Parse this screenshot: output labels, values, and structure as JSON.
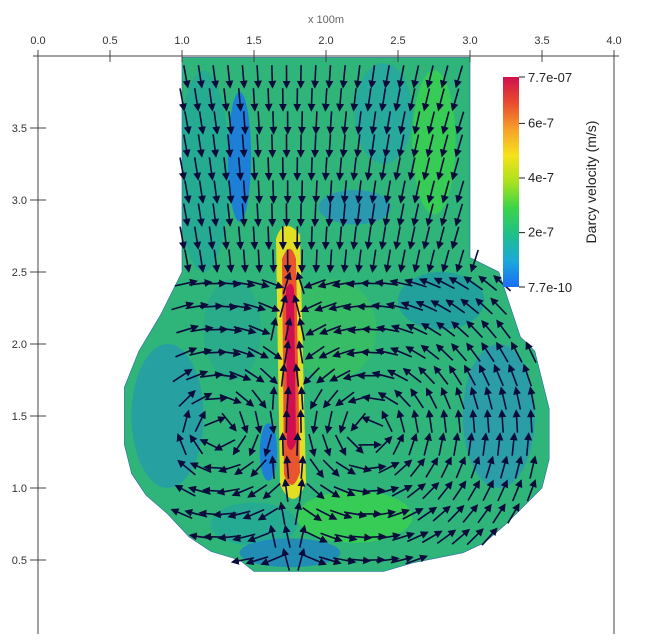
{
  "chart_data": {
    "type": "heatmap",
    "x_axis": {
      "unit_label": "x 100m",
      "range": [
        0.0,
        4.0
      ],
      "ticks": [
        "0.0",
        "0.5",
        "1.0",
        "1.5",
        "2.0",
        "2.5",
        "3.0",
        "3.5",
        "4.0"
      ],
      "position": "top"
    },
    "y_axis": {
      "range": [
        0.0,
        4.0
      ],
      "ticks": [
        "0.5",
        "1.0",
        "1.5",
        "2.0",
        "2.5",
        "3.0",
        "3.5"
      ],
      "position": "left"
    },
    "colorbar": {
      "title": "Darcy velocity (m/s)",
      "min_label": "7.7e-10",
      "max_label": "7.7e-07",
      "tick_labels": [
        "6e-7",
        "4e-7",
        "2e-7"
      ],
      "tick_values": [
        6e-07,
        4e-07,
        2e-07
      ],
      "min": 7.7e-10,
      "max": 7.7e-07,
      "placement": "top-right",
      "colors": [
        "#1a6ef5",
        "#1ba9d8",
        "#1fbf8a",
        "#3bd44a",
        "#a8e21e",
        "#f5e31a",
        "#f7a12a",
        "#e84d2f",
        "#d0104e"
      ]
    },
    "domain_outline": [
      [
        1.0,
        3.99
      ],
      [
        3.0,
        3.99
      ],
      [
        3.0,
        2.6
      ],
      [
        3.2,
        2.5
      ],
      [
        3.3,
        2.2
      ],
      [
        3.35,
        2.05
      ],
      [
        3.45,
        1.95
      ],
      [
        3.5,
        1.75
      ],
      [
        3.55,
        1.55
      ],
      [
        3.55,
        1.2
      ],
      [
        3.5,
        1.0
      ],
      [
        3.35,
        0.85
      ],
      [
        3.25,
        0.75
      ],
      [
        3.1,
        0.62
      ],
      [
        2.95,
        0.55
      ],
      [
        2.6,
        0.48
      ],
      [
        2.4,
        0.42
      ],
      [
        1.5,
        0.42
      ],
      [
        1.4,
        0.5
      ],
      [
        1.2,
        0.56
      ],
      [
        1.05,
        0.66
      ],
      [
        0.9,
        0.82
      ],
      [
        0.75,
        0.95
      ],
      [
        0.65,
        1.1
      ],
      [
        0.6,
        1.3
      ],
      [
        0.6,
        1.7
      ],
      [
        0.7,
        1.95
      ],
      [
        0.85,
        2.2
      ],
      [
        1.0,
        2.5
      ],
      [
        1.0,
        3.99
      ]
    ],
    "field_description": "low ~2e-7 background (green) with a high-velocity vertical band near x=1.75 from y=0.9 to y=2.8 peaking ~7.7e-7; blue low zones near x=1.3-1.4 around y=2.9-3.5 and near x=1.6 around y=1.2",
    "high_band": {
      "x": 1.75,
      "y_range": [
        0.9,
        2.8
      ],
      "peak": 7.7e-07
    },
    "vectors": "Darcy velocity arrows: downward flow in the upper neck, converging into the central band; two counter-rotating recirculation cells in the lower bulb (left cell clockwise, right cell counter-clockwise)"
  }
}
